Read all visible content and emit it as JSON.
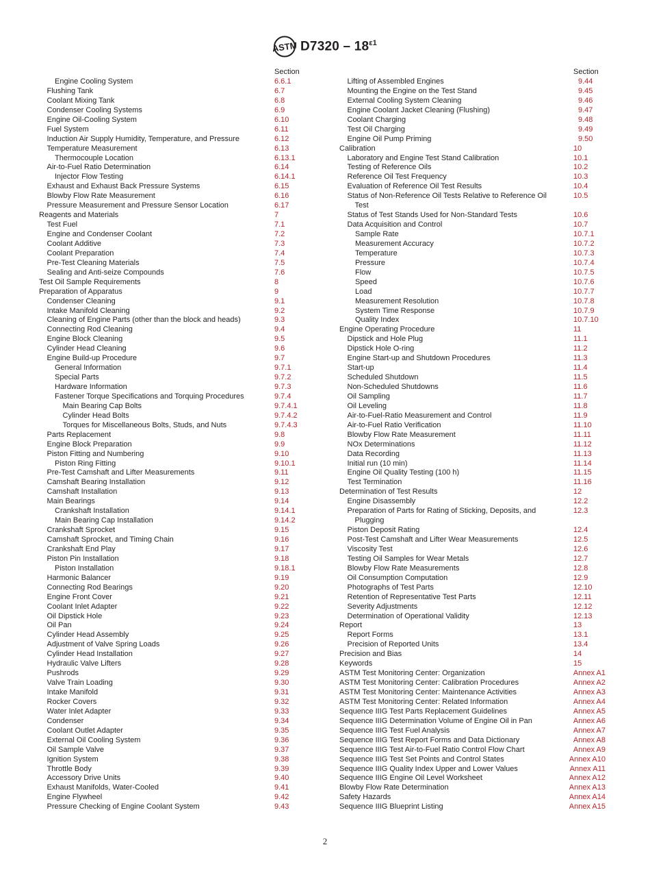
{
  "header": {
    "doc_id": "D7320 – 18",
    "superscript": "ε1",
    "logo_text": "ASTM"
  },
  "section_label": "Section",
  "left_column": [
    {
      "t": "Engine Cooling System",
      "n": "6.6.1",
      "l": 2
    },
    {
      "t": "Flushing Tank",
      "n": "6.7",
      "l": 1
    },
    {
      "t": "Coolant Mixing Tank",
      "n": "6.8",
      "l": 1
    },
    {
      "t": "Condenser Cooling Systems",
      "n": "6.9",
      "l": 1
    },
    {
      "t": "Engine Oil-Cooling System",
      "n": "6.10",
      "l": 1
    },
    {
      "t": "Fuel System",
      "n": "6.11",
      "l": 1
    },
    {
      "t": "Induction Air Supply Humidity, Temperature, and Pressure",
      "n": "6.12",
      "l": 1
    },
    {
      "t": "Temperature Measurement",
      "n": "6.13",
      "l": 1
    },
    {
      "t": "Thermocouple Location",
      "n": "6.13.1",
      "l": 2
    },
    {
      "t": "Air-to-Fuel Ratio Determination",
      "n": "6.14",
      "l": 1
    },
    {
      "t": "Injector Flow Testing",
      "n": "6.14.1",
      "l": 2
    },
    {
      "t": "Exhaust and Exhaust Back Pressure Systems",
      "n": "6.15",
      "l": 1
    },
    {
      "t": "Blowby Flow Rate Measurement",
      "n": "6.16",
      "l": 1
    },
    {
      "t": "Pressure Measurement and Pressure Sensor Location",
      "n": "6.17",
      "l": 1
    },
    {
      "t": "Reagents and Materials",
      "n": "7",
      "l": 0
    },
    {
      "t": "Test Fuel",
      "n": "7.1",
      "l": 1
    },
    {
      "t": "Engine and Condenser Coolant",
      "n": "7.2",
      "l": 1
    },
    {
      "t": "Coolant Additive",
      "n": "7.3",
      "l": 1
    },
    {
      "t": "Coolant Preparation",
      "n": "7.4",
      "l": 1
    },
    {
      "t": "Pre-Test Cleaning Materials",
      "n": "7.5",
      "l": 1
    },
    {
      "t": "Sealing and Anti-seize Compounds",
      "n": "7.6",
      "l": 1
    },
    {
      "t": "Test Oil Sample Requirements",
      "n": "8",
      "l": 0
    },
    {
      "t": "Preparation of Apparatus",
      "n": "9",
      "l": 0
    },
    {
      "t": "Condenser Cleaning",
      "n": "9.1",
      "l": 1
    },
    {
      "t": "Intake Manifold Cleaning",
      "n": "9.2",
      "l": 1
    },
    {
      "t": "Cleaning of Engine Parts (other than the block and heads)",
      "n": "9.3",
      "l": 1
    },
    {
      "t": "Connecting Rod Cleaning",
      "n": "9.4",
      "l": 1
    },
    {
      "t": "Engine Block Cleaning",
      "n": "9.5",
      "l": 1
    },
    {
      "t": "Cylinder Head Cleaning",
      "n": "9.6",
      "l": 1
    },
    {
      "t": "Engine Build-up Procedure",
      "n": "9.7",
      "l": 1
    },
    {
      "t": "General Information",
      "n": "9.7.1",
      "l": 2
    },
    {
      "t": "Special Parts",
      "n": "9.7.2",
      "l": 2
    },
    {
      "t": "Hardware Information",
      "n": "9.7.3",
      "l": 2
    },
    {
      "t": "Fastener Torque Specifications and Torquing Procedures",
      "n": "9.7.4",
      "l": 2
    },
    {
      "t": "Main Bearing Cap Bolts",
      "n": "9.7.4.1",
      "l": 3
    },
    {
      "t": "Cylinder Head Bolts",
      "n": "9.7.4.2",
      "l": 3
    },
    {
      "t": "Torques for Miscellaneous Bolts, Studs, and Nuts",
      "n": "9.7.4.3",
      "l": 3
    },
    {
      "t": "Parts Replacement",
      "n": "9.8",
      "l": 1
    },
    {
      "t": "Engine Block Preparation",
      "n": "9.9",
      "l": 1
    },
    {
      "t": "Piston Fitting and Numbering",
      "n": "9.10",
      "l": 1
    },
    {
      "t": "Piston Ring Fitting",
      "n": "9.10.1",
      "l": 2
    },
    {
      "t": "Pre-Test Camshaft and Lifter Measurements",
      "n": "9.11",
      "l": 1
    },
    {
      "t": "Camshaft Bearing Installation",
      "n": "9.12",
      "l": 1
    },
    {
      "t": "Camshaft Installation",
      "n": "9.13",
      "l": 1
    },
    {
      "t": "Main Bearings",
      "n": "9.14",
      "l": 1
    },
    {
      "t": "Crankshaft Installation",
      "n": "9.14.1",
      "l": 2
    },
    {
      "t": "Main Bearing Cap Installation",
      "n": "9.14.2",
      "l": 2
    },
    {
      "t": "Crankshaft Sprocket",
      "n": "9.15",
      "l": 1
    },
    {
      "t": "Camshaft Sprocket, and Timing Chain",
      "n": "9.16",
      "l": 1
    },
    {
      "t": "Crankshaft End Play",
      "n": "9.17",
      "l": 1
    },
    {
      "t": "Piston Pin Installation",
      "n": "9.18",
      "l": 1
    },
    {
      "t": "Piston Installation",
      "n": "9.18.1",
      "l": 2
    },
    {
      "t": "Harmonic Balancer",
      "n": "9.19",
      "l": 1
    },
    {
      "t": "Connecting Rod Bearings",
      "n": "9.20",
      "l": 1
    },
    {
      "t": "Engine Front Cover",
      "n": "9.21",
      "l": 1
    },
    {
      "t": "Coolant Inlet Adapter",
      "n": "9.22",
      "l": 1
    },
    {
      "t": "Oil Dipstick Hole",
      "n": "9.23",
      "l": 1
    },
    {
      "t": "Oil Pan",
      "n": "9.24",
      "l": 1
    },
    {
      "t": "Cylinder Head Assembly",
      "n": "9.25",
      "l": 1
    },
    {
      "t": "Adjustment of Valve Spring Loads",
      "n": "9.26",
      "l": 1
    },
    {
      "t": "Cylinder Head Installation",
      "n": "9.27",
      "l": 1
    },
    {
      "t": "Hydraulic Valve Lifters",
      "n": "9.28",
      "l": 1
    },
    {
      "t": "Pushrods",
      "n": "9.29",
      "l": 1
    },
    {
      "t": "Valve Train Loading",
      "n": "9.30",
      "l": 1
    },
    {
      "t": "Intake Manifold",
      "n": "9.31",
      "l": 1
    },
    {
      "t": "Rocker Covers",
      "n": "9.32",
      "l": 1
    },
    {
      "t": "Water Inlet Adapter",
      "n": "9.33",
      "l": 1
    },
    {
      "t": "Condenser",
      "n": "9.34",
      "l": 1
    },
    {
      "t": "Coolant Outlet Adapter",
      "n": "9.35",
      "l": 1
    },
    {
      "t": "External Oil Cooling System",
      "n": "9.36",
      "l": 1
    },
    {
      "t": "Oil Sample Valve",
      "n": "9.37",
      "l": 1
    },
    {
      "t": "Ignition System",
      "n": "9.38",
      "l": 1
    },
    {
      "t": "Throttle Body",
      "n": "9.39",
      "l": 1
    },
    {
      "t": "Accessory Drive Units",
      "n": "9.40",
      "l": 1
    },
    {
      "t": "Exhaust Manifolds, Water-Cooled",
      "n": "9.41",
      "l": 1
    },
    {
      "t": "Engine Flywheel",
      "n": "9.42",
      "l": 1
    },
    {
      "t": "Pressure Checking of Engine Coolant System",
      "n": "9.43",
      "l": 1
    }
  ],
  "right_column": [
    {
      "t": "Lifting of Assembled Engines",
      "n": "9.44",
      "l": 1
    },
    {
      "t": "Mounting the Engine on the Test Stand",
      "n": "9.45",
      "l": 1
    },
    {
      "t": "External Cooling System Cleaning",
      "n": "9.46",
      "l": 1
    },
    {
      "t": "Engine Coolant Jacket Cleaning (Flushing)",
      "n": "9.47",
      "l": 1
    },
    {
      "t": "Coolant Charging",
      "n": "9.48",
      "l": 1
    },
    {
      "t": "Test Oil Charging",
      "n": "9.49",
      "l": 1
    },
    {
      "t": "Engine Oil Pump Priming",
      "n": "9.50",
      "l": 1
    },
    {
      "t": "Calibration",
      "n": "10",
      "l": 0
    },
    {
      "t": "Laboratory and Engine Test Stand Calibration",
      "n": "10.1",
      "l": 1
    },
    {
      "t": "Testing of Reference Oils",
      "n": "10.2",
      "l": 1
    },
    {
      "t": "Reference Oil Test Frequency",
      "n": "10.3",
      "l": 1
    },
    {
      "t": "Evaluation of Reference Oil Test Results",
      "n": "10.4",
      "l": 1
    },
    {
      "t": "Status of Non-Reference Oil Tests Relative to Reference Oil Test",
      "n": "10.5",
      "l": 1
    },
    {
      "t": "Status of Test Stands Used for Non-Standard Tests",
      "n": "10.6",
      "l": 1
    },
    {
      "t": "Data Acquisition and Control",
      "n": "10.7",
      "l": 1
    },
    {
      "t": "Sample Rate",
      "n": "10.7.1",
      "l": 2
    },
    {
      "t": "Measurement Accuracy",
      "n": "10.7.2",
      "l": 2
    },
    {
      "t": "Temperature",
      "n": "10.7.3",
      "l": 2
    },
    {
      "t": "Pressure",
      "n": "10.7.4",
      "l": 2
    },
    {
      "t": "Flow",
      "n": "10.7.5",
      "l": 2
    },
    {
      "t": "Speed",
      "n": "10.7.6",
      "l": 2
    },
    {
      "t": "Load",
      "n": "10.7.7",
      "l": 2
    },
    {
      "t": "Measurement Resolution",
      "n": "10.7.8",
      "l": 2
    },
    {
      "t": "System Time Response",
      "n": "10.7.9",
      "l": 2
    },
    {
      "t": "Quality Index",
      "n": "10.7.10",
      "l": 2
    },
    {
      "t": "Engine Operating Procedure",
      "n": "11",
      "l": 0
    },
    {
      "t": "Dipstick and Hole Plug",
      "n": "11.1",
      "l": 1
    },
    {
      "t": "Dipstick Hole O-ring",
      "n": "11.2",
      "l": 1
    },
    {
      "t": "Engine Start-up and Shutdown Procedures",
      "n": "11.3",
      "l": 1
    },
    {
      "t": "Start-up",
      "n": "11.4",
      "l": 1
    },
    {
      "t": "Scheduled Shutdown",
      "n": "11.5",
      "l": 1
    },
    {
      "t": "Non-Scheduled Shutdowns",
      "n": "11.6",
      "l": 1
    },
    {
      "t": "Oil Sampling",
      "n": "11.7",
      "l": 1
    },
    {
      "t": "Oil Leveling",
      "n": "11.8",
      "l": 1
    },
    {
      "t": "Air-to-Fuel-Ratio Measurement and Control",
      "n": "11.9",
      "l": 1
    },
    {
      "t": "Air-to-Fuel Ratio Verification",
      "n": "11.10",
      "l": 1
    },
    {
      "t": "Blowby Flow Rate Measurement",
      "n": "11.11",
      "l": 1
    },
    {
      "t": "NOx Determinations",
      "n": "11.12",
      "l": 1
    },
    {
      "t": "Data Recording",
      "n": "11.13",
      "l": 1
    },
    {
      "t": "Initial run (10 min)",
      "n": "11.14",
      "l": 1
    },
    {
      "t": "Engine Oil Quality Testing (100 h)",
      "n": "11.15",
      "l": 1
    },
    {
      "t": "Test Termination",
      "n": "11.16",
      "l": 1
    },
    {
      "t": "Determination of Test Results",
      "n": "12",
      "l": 0
    },
    {
      "t": "Engine Disassembly",
      "n": "12.2",
      "l": 1
    },
    {
      "t": "Preparation of Parts for Rating of Sticking, Deposits, and Plugging",
      "n": "12.3",
      "l": 1
    },
    {
      "t": "Piston Deposit Rating",
      "n": "12.4",
      "l": 1
    },
    {
      "t": "Post-Test Camshaft and Lifter Wear Measurements",
      "n": "12.5",
      "l": 1
    },
    {
      "t": "Viscosity Test",
      "n": "12.6",
      "l": 1
    },
    {
      "t": "Testing Oil Samples for Wear Metals",
      "n": "12.7",
      "l": 1
    },
    {
      "t": "Blowby Flow Rate Measurements",
      "n": "12.8",
      "l": 1
    },
    {
      "t": "Oil Consumption Computation",
      "n": "12.9",
      "l": 1
    },
    {
      "t": "Photographs of Test Parts",
      "n": "12.10",
      "l": 1
    },
    {
      "t": "Retention of Representative Test Parts",
      "n": "12.11",
      "l": 1
    },
    {
      "t": "Severity Adjustments",
      "n": "12.12",
      "l": 1
    },
    {
      "t": "Determination of Operational Validity",
      "n": "12.13",
      "l": 1
    },
    {
      "t": "Report",
      "n": "13",
      "l": 0
    },
    {
      "t": "Report Forms",
      "n": "13.1",
      "l": 1
    },
    {
      "t": "Precision of Reported Units",
      "n": "13.4",
      "l": 1
    },
    {
      "t": "Precision and Bias",
      "n": "14",
      "l": 0
    },
    {
      "t": "Keywords",
      "n": "15",
      "l": 0
    },
    {
      "t": "ASTM Test Monitoring Center: Organization",
      "n": "Annex A1",
      "l": 0
    },
    {
      "t": "ASTM Test Monitoring Center: Calibration Procedures",
      "n": "Annex A2",
      "l": 0
    },
    {
      "t": "ASTM Test Monitoring Center: Maintenance Activities",
      "n": "Annex A3",
      "l": 0
    },
    {
      "t": "ASTM Test Monitoring Center: Related Information",
      "n": "Annex A4",
      "l": 0
    },
    {
      "t": "Sequence IIIG Test Parts Replacement Guidelines",
      "n": "Annex A5",
      "l": 0
    },
    {
      "t": "Sequence IIIG Determination Volume of Engine Oil in Pan",
      "n": "Annex A6",
      "l": 0
    },
    {
      "t": "Sequence IIIG Test Fuel Analysis",
      "n": "Annex A7",
      "l": 0
    },
    {
      "t": "Sequence IIIG Test Report Forms and Data Dictionary",
      "n": "Annex A8",
      "l": 0
    },
    {
      "t": "Sequence IIIG Test Air-to-Fuel Ratio Control Flow Chart",
      "n": "Annex A9",
      "l": 0
    },
    {
      "t": "Sequence IIIG Test Set Points and Control States",
      "n": "Annex A10",
      "l": 0
    },
    {
      "t": "Sequence IIIG Quality Index Upper and Lower Values",
      "n": "Annex A11",
      "l": 0
    },
    {
      "t": "Sequence IIIG Engine Oil Level Worksheet",
      "n": "Annex A12",
      "l": 0
    },
    {
      "t": "Blowby Flow Rate Determination",
      "n": "Annex A13",
      "l": 0
    },
    {
      "t": "Safety Hazards",
      "n": "Annex A14",
      "l": 0
    },
    {
      "t": "Sequence IIIG Blueprint Listing",
      "n": "Annex A15",
      "l": 0
    }
  ],
  "page_number": "2",
  "colors": {
    "text": "#231f20",
    "section_ref": "#b5242a"
  }
}
